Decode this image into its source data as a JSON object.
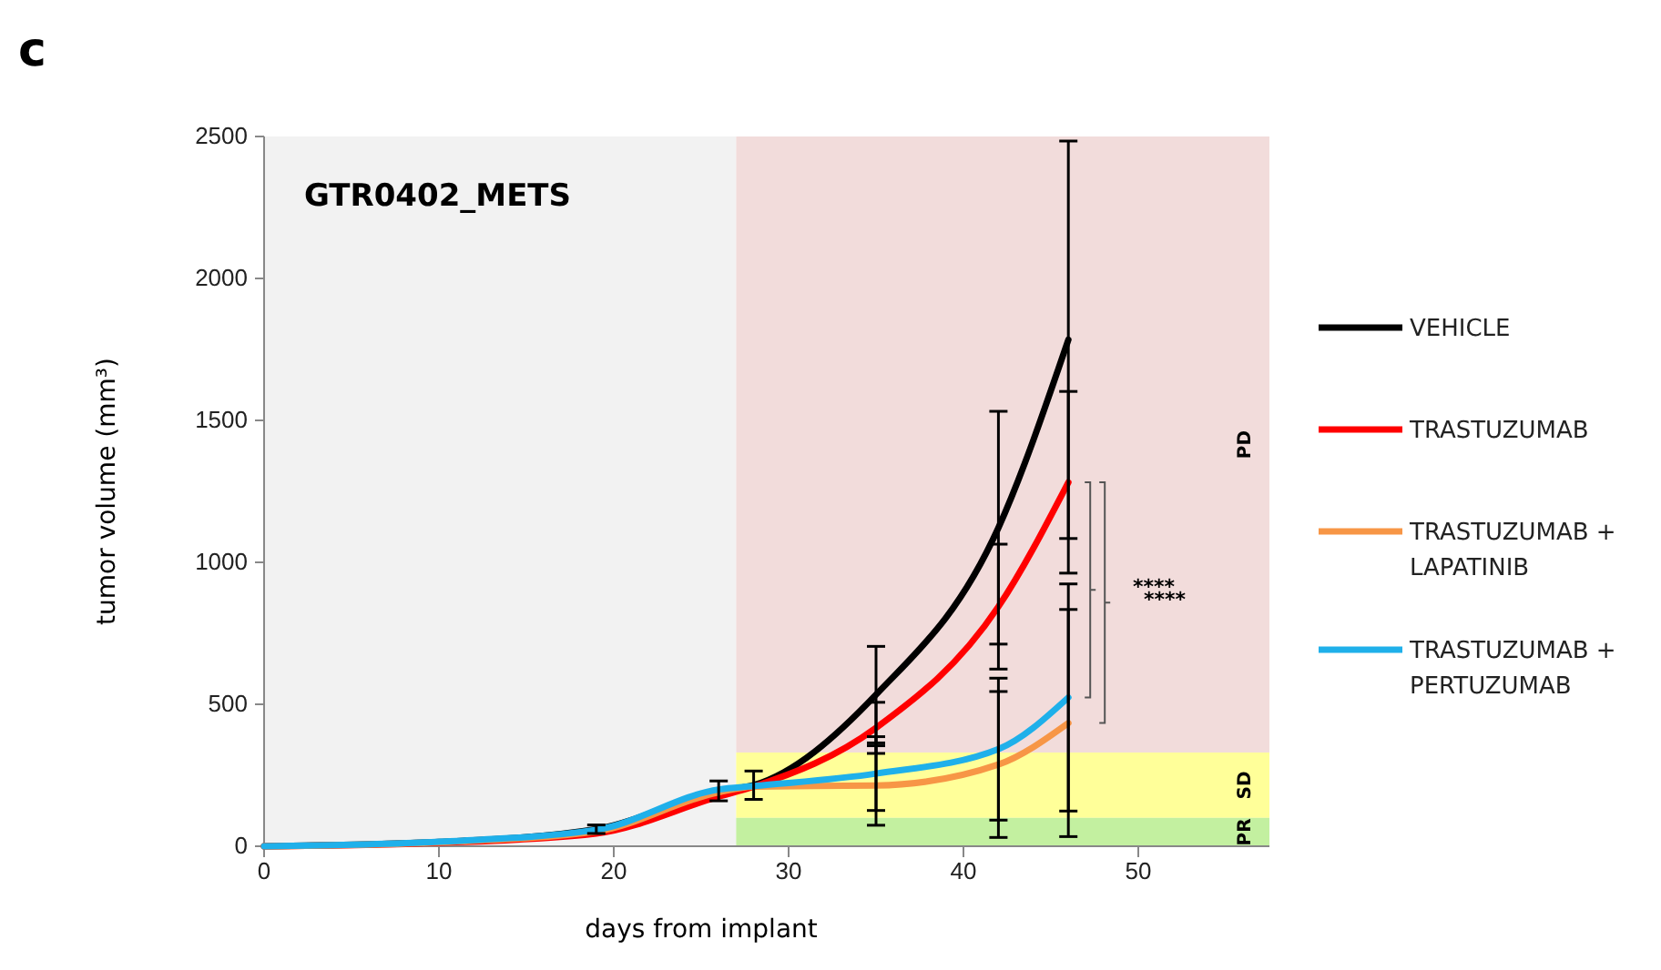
{
  "chart_data": {
    "type": "line",
    "title": "GTR0402_METS",
    "xlabel": "days from implant",
    "ylabel": "tumor volume (mm³)",
    "x": [
      0,
      10,
      19,
      26,
      28,
      35,
      42,
      46
    ],
    "series": [
      {
        "name": "VEHICLE",
        "color": "#000000",
        "values": [
          0,
          15,
          60,
          195,
          215,
          534,
          1122,
          1784
        ],
        "errors": [
          null,
          null,
          15,
          35,
          50,
          170,
          410,
          700
        ]
      },
      {
        "name": "TRASTUZUMAB",
        "color": "#ff0000",
        "values": [
          0,
          12,
          45,
          175,
          210,
          417,
          844,
          1282
        ],
        "errors": [
          null,
          null,
          null,
          null,
          null,
          90,
          220,
          320
        ]
      },
      {
        "name": "TRASTUZUMAB + LAPATINIB",
        "color": "#f79646",
        "values": [
          0,
          14,
          52,
          190,
          210,
          214,
          288,
          434
        ],
        "errors": [
          null,
          null,
          null,
          null,
          null,
          140,
          257,
          400
        ]
      },
      {
        "name": "TRASTUZUMAB + PERTUZUMAB",
        "color": "#1fb0ea",
        "values": [
          0,
          16,
          58,
          200,
          212,
          256,
          342,
          524
        ],
        "errors": [
          null,
          null,
          null,
          null,
          null,
          130,
          250,
          400
        ]
      }
    ],
    "xlim": [
      0,
      57.5
    ],
    "xticks": [
      0,
      10,
      20,
      30,
      40,
      50
    ],
    "ylim": [
      0,
      2500
    ],
    "yticks": [
      0,
      500,
      1000,
      1500,
      2000,
      2500
    ],
    "bands": [
      {
        "axis": "x",
        "from": 0,
        "to": 27,
        "label": null,
        "color": "#f2f2f2"
      },
      {
        "axis": "y",
        "from": 330,
        "to": 2500,
        "label": "PD",
        "color": "#f2dcdb"
      },
      {
        "axis": "y",
        "from": 100,
        "to": 330,
        "label": "SD",
        "color": "#ffff99"
      },
      {
        "axis": "y",
        "from": 0,
        "to": 100,
        "label": "PR",
        "color": "#c3f0a0"
      }
    ],
    "annotations": [
      "c",
      "****",
      "****"
    ],
    "legend": "right",
    "grid": false,
    "marker": "none",
    "line_style": "solid"
  }
}
